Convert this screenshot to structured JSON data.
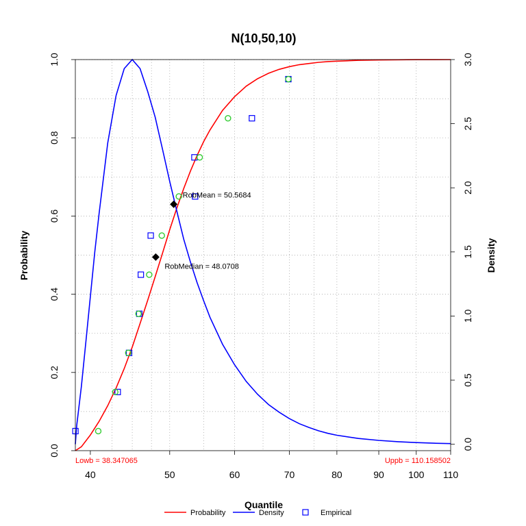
{
  "chart_data": {
    "type": "line",
    "title": "N(10,50,10)",
    "xlabel": "Quantile",
    "ylabel_left": "Probability",
    "ylabel_right": "Density",
    "x_ticks": [
      {
        "value": 40,
        "label": "40"
      },
      {
        "value": 50,
        "label": "50"
      },
      {
        "value": 60,
        "label": "60"
      },
      {
        "value": 70,
        "label": "70"
      },
      {
        "value": 80,
        "label": "80"
      },
      {
        "value": 90,
        "label": "90"
      },
      {
        "value": 100,
        "label": "100"
      },
      {
        "value": 110,
        "label": "110"
      }
    ],
    "y_left_ticks": [
      {
        "value": 0.0,
        "label": "0.0"
      },
      {
        "value": 0.2,
        "label": "0.2"
      },
      {
        "value": 0.4,
        "label": "0.4"
      },
      {
        "value": 0.6,
        "label": "0.6"
      },
      {
        "value": 0.8,
        "label": "0.8"
      },
      {
        "value": 1.0,
        "label": "1.0"
      }
    ],
    "y_right_ticks": [
      {
        "value": 0.0,
        "label": "0.0"
      },
      {
        "value": 0.5,
        "label": "0.5"
      },
      {
        "value": 1.0,
        "label": "1.0"
      },
      {
        "value": 1.5,
        "label": "1.5"
      },
      {
        "value": 2.0,
        "label": "2.0"
      },
      {
        "value": 2.5,
        "label": "2.5"
      },
      {
        "value": 3.0,
        "label": "3.0"
      }
    ],
    "ylim_left": [
      0,
      1
    ],
    "ylim_right": [
      -0.05,
      3.0
    ],
    "grid": true,
    "grid_style": "dotted",
    "series": [
      {
        "name": "Probability",
        "color": "#ff0000",
        "axis": "left",
        "x": [
          38.35,
          39,
          40,
          41,
          42,
          43,
          44,
          45,
          46,
          47,
          48,
          49,
          50,
          51,
          52,
          53,
          54,
          55,
          56,
          58,
          60,
          62,
          64,
          66,
          68,
          70,
          72,
          74,
          76,
          78,
          80,
          85,
          90,
          95,
          100,
          105,
          110.16
        ],
        "values": [
          0.0,
          0.01,
          0.04,
          0.075,
          0.115,
          0.16,
          0.21,
          0.265,
          0.325,
          0.385,
          0.445,
          0.505,
          0.565,
          0.62,
          0.67,
          0.715,
          0.755,
          0.79,
          0.82,
          0.87,
          0.905,
          0.932,
          0.951,
          0.965,
          0.975,
          0.982,
          0.987,
          0.99,
          0.993,
          0.995,
          0.996,
          0.998,
          0.999,
          0.9995,
          0.9998,
          0.9999,
          1.0
        ]
      },
      {
        "name": "Density",
        "color": "#0000ff",
        "axis": "right",
        "x": [
          38.35,
          38.5,
          39,
          39.5,
          40,
          40.5,
          41,
          42,
          43,
          44,
          45,
          46,
          47,
          48,
          49,
          50,
          51,
          52,
          53,
          54,
          55,
          56,
          58,
          60,
          62,
          64,
          66,
          68,
          70,
          72,
          74,
          76,
          78,
          80,
          85,
          90,
          95,
          100,
          105,
          110.16
        ],
        "values": [
          0.0,
          0.15,
          0.45,
          0.8,
          1.15,
          1.5,
          1.8,
          2.35,
          2.72,
          2.93,
          3.0,
          2.93,
          2.75,
          2.55,
          2.3,
          2.05,
          1.82,
          1.6,
          1.42,
          1.26,
          1.12,
          0.99,
          0.78,
          0.62,
          0.49,
          0.39,
          0.31,
          0.25,
          0.2,
          0.16,
          0.13,
          0.105,
          0.085,
          0.07,
          0.045,
          0.03,
          0.02,
          0.013,
          0.008,
          0.005
        ]
      },
      {
        "name": "Empirical",
        "color": "#0000ff",
        "axis": "left",
        "marker": "square",
        "x": [
          38.36,
          43.2,
          44.6,
          45.9,
          46.1,
          47.4,
          53.6,
          53.7,
          63.0,
          69.8
        ],
        "values": [
          0.05,
          0.15,
          0.25,
          0.35,
          0.45,
          0.55,
          0.75,
          0.65,
          0.85,
          0.95
        ]
      },
      {
        "name": "Fitted points",
        "color": "#33cc33",
        "axis": "left",
        "marker": "circle",
        "x": [
          40.9,
          42.9,
          44.5,
          45.8,
          47.2,
          48.9,
          51.3,
          54.4,
          58.9,
          69.8
        ],
        "values": [
          0.05,
          0.15,
          0.25,
          0.35,
          0.45,
          0.55,
          0.65,
          0.75,
          0.85,
          0.95
        ]
      }
    ],
    "markers": [
      {
        "x": 50.5684,
        "y": 0.63,
        "label": "RobMean = 50.5684"
      },
      {
        "x": 48.0708,
        "y": 0.495,
        "label": "RobMedian = 48.0708"
      }
    ],
    "bounds": {
      "low": {
        "x": 38.347065,
        "label": "Lowb = 38.347065"
      },
      "upp": {
        "x": 110.158502,
        "label": "Uppb = 110.158502"
      }
    },
    "legend": {
      "placement": "bottom",
      "items": [
        {
          "label": "Probability",
          "color": "#ff0000",
          "symbol": "line"
        },
        {
          "label": "Density",
          "color": "#0000ff",
          "symbol": "line"
        },
        {
          "label": "Empirical",
          "color": "#0000ff",
          "symbol": "square"
        }
      ]
    }
  }
}
